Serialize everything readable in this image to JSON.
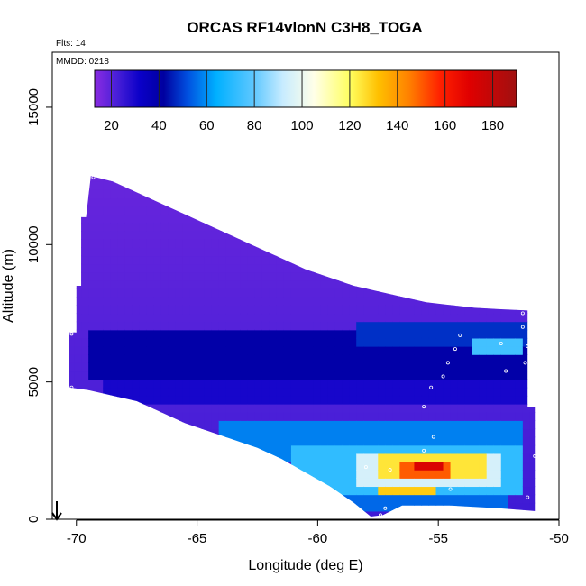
{
  "chart_data": {
    "type": "heatmap",
    "title": "ORCAS RF14vlonN C3H8_TOGA",
    "notes": {
      "flights": "Flts: 14",
      "date": "MMDD: 0218"
    },
    "xlabel": "Longitude (deg E)",
    "ylabel": "Altitude (m)",
    "xlim": [
      -71,
      -50
    ],
    "ylim": [
      0,
      17000
    ],
    "x_ticks": [
      -70,
      -65,
      -60,
      -55,
      -50
    ],
    "y_ticks": [
      0,
      5000,
      10000,
      15000
    ],
    "colorbar": {
      "range": [
        13,
        190
      ],
      "ticks": [
        20,
        40,
        60,
        80,
        100,
        120,
        140,
        160,
        180
      ],
      "stops": [
        {
          "v": 13,
          "c": "#8a2be2"
        },
        {
          "v": 22,
          "c": "#4b20d8"
        },
        {
          "v": 32,
          "c": "#0a00c8"
        },
        {
          "v": 42,
          "c": "#0000a0"
        },
        {
          "v": 52,
          "c": "#0050e0"
        },
        {
          "v": 64,
          "c": "#00b0ff"
        },
        {
          "v": 80,
          "c": "#60c8ff"
        },
        {
          "v": 92,
          "c": "#c8ecff"
        },
        {
          "v": 105,
          "c": "#ffffe8"
        },
        {
          "v": 120,
          "c": "#ffff60"
        },
        {
          "v": 132,
          "c": "#ffc000"
        },
        {
          "v": 145,
          "c": "#ff8000"
        },
        {
          "v": 158,
          "c": "#ff2000"
        },
        {
          "v": 170,
          "c": "#e00000"
        },
        {
          "v": 190,
          "c": "#a01010"
        }
      ]
    },
    "curtain": {
      "outline": [
        [
          -69.4,
          12500
        ],
        [
          -68.5,
          12300
        ],
        [
          -67.5,
          11900
        ],
        [
          -66.5,
          11500
        ],
        [
          -65.5,
          11100
        ],
        [
          -64.5,
          10700
        ],
        [
          -63.5,
          10300
        ],
        [
          -62.5,
          9900
        ],
        [
          -61.5,
          9500
        ],
        [
          -60.5,
          9100
        ],
        [
          -59.5,
          8800
        ],
        [
          -58.5,
          8500
        ],
        [
          -57.5,
          8300
        ],
        [
          -56.5,
          8100
        ],
        [
          -55.5,
          7900
        ],
        [
          -54.5,
          7800
        ],
        [
          -53.5,
          7700
        ],
        [
          -52.5,
          7650
        ],
        [
          -51.3,
          7600
        ],
        [
          -51.3,
          4100
        ],
        [
          -51.0,
          4100
        ],
        [
          -51.0,
          300
        ],
        [
          -52.5,
          400
        ],
        [
          -54.5,
          500
        ],
        [
          -56.5,
          500
        ],
        [
          -57.3,
          150
        ],
        [
          -57.8,
          100
        ],
        [
          -58.5,
          600
        ],
        [
          -59.5,
          1200
        ],
        [
          -60.5,
          1700
        ],
        [
          -61.5,
          2200
        ],
        [
          -62.5,
          2600
        ],
        [
          -63.5,
          2900
        ],
        [
          -64.5,
          3200
        ],
        [
          -65.5,
          3500
        ],
        [
          -66.5,
          3900
        ],
        [
          -67.5,
          4300
        ],
        [
          -68.5,
          4500
        ],
        [
          -69.5,
          4700
        ],
        [
          -70.3,
          4800
        ],
        [
          -70.3,
          6800
        ],
        [
          -70.0,
          6800
        ],
        [
          -70.0,
          8500
        ],
        [
          -69.8,
          8500
        ],
        [
          -69.8,
          11000
        ],
        [
          -69.6,
          11000
        ]
      ],
      "background_value": 18,
      "plumes": [
        {
          "lon": [
            -69.5,
            -51.3
          ],
          "alt": [
            5200,
            6800
          ],
          "value": 40
        },
        {
          "lon": [
            -58.5,
            -51.3
          ],
          "alt": [
            6300,
            7200
          ],
          "value": 48
        },
        {
          "lon": [
            -53.5,
            -51.5
          ],
          "alt": [
            6100,
            6700
          ],
          "value": 75
        },
        {
          "lon": [
            -69.0,
            -51.0
          ],
          "alt": [
            4200,
            5200
          ],
          "value": 30
        },
        {
          "lon": [
            -64.0,
            -51.5
          ],
          "alt": [
            2200,
            3600
          ],
          "value": 58
        },
        {
          "lon": [
            -61.0,
            -51.5
          ],
          "alt": [
            1000,
            2600
          ],
          "value": 72
        },
        {
          "lon": [
            -58.5,
            -52.5
          ],
          "alt": [
            1300,
            2400
          ],
          "value": 95
        },
        {
          "lon": [
            -57.5,
            -53.0
          ],
          "alt": [
            1600,
            2300
          ],
          "value": 125
        },
        {
          "lon": [
            -56.5,
            -54.5
          ],
          "alt": [
            1600,
            2200
          ],
          "value": 150
        },
        {
          "lon": [
            -56.0,
            -54.8
          ],
          "alt": [
            1750,
            2000
          ],
          "value": 172
        },
        {
          "lon": [
            -57.5,
            -55.0
          ],
          "alt": [
            900,
            1300
          ],
          "value": 130
        },
        {
          "lon": [
            -59.5,
            -52.0
          ],
          "alt": [
            400,
            1000
          ],
          "value": 55
        }
      ],
      "sample_points": [
        [
          -69.3,
          12450
        ],
        [
          -70.2,
          6750
        ],
        [
          -70.2,
          4800
        ],
        [
          -54.1,
          6700
        ],
        [
          -54.3,
          6200
        ],
        [
          -52.4,
          6400
        ],
        [
          -51.5,
          7500
        ],
        [
          -51.5,
          7000
        ],
        [
          -51.3,
          6300
        ],
        [
          -51.4,
          5700
        ],
        [
          -52.2,
          5400
        ],
        [
          -54.6,
          5700
        ],
        [
          -54.8,
          5200
        ],
        [
          -55.3,
          4800
        ],
        [
          -55.6,
          4100
        ],
        [
          -55.2,
          3000
        ],
        [
          -55.6,
          2500
        ],
        [
          -57.0,
          1800
        ],
        [
          -58.0,
          1900
        ],
        [
          -51.0,
          2300
        ],
        [
          -51.3,
          800
        ],
        [
          -50.9,
          350
        ],
        [
          -57.2,
          400
        ],
        [
          -57.4,
          150
        ],
        [
          -56.5,
          150
        ],
        [
          -54.5,
          1100
        ]
      ]
    }
  }
}
